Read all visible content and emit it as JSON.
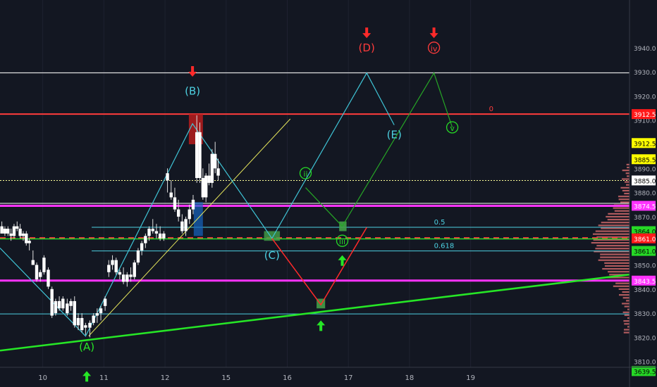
{
  "chart_data": {
    "type": "candlestick",
    "y_axis": {
      "range": [
        3800,
        3950
      ],
      "tick_labels": [
        "3940.0",
        "3930.0",
        "3920.0",
        "3910.0",
        "3890.0",
        "3880.0",
        "3870.0",
        "3850.0",
        "3840.0",
        "3830.0",
        "3820.0",
        "3810.0"
      ],
      "price_tags": [
        {
          "label": "3912.5",
          "value": 3912.5,
          "bg": "#ff1a1a",
          "fg": "#ffffff"
        },
        {
          "label": "3912.5",
          "value": 3900.5,
          "bg": "#ffff00",
          "fg": "#000000"
        },
        {
          "label": "3885.5",
          "value": 3893.8,
          "bg": "#ffff00",
          "fg": "#000000"
        },
        {
          "label": "3885.0",
          "value": 3885,
          "bg": "#ffffff",
          "fg": "#000000"
        },
        {
          "label": "3874.5",
          "value": 3874.5,
          "bg": "#ff33ff",
          "fg": "#ffffff"
        },
        {
          "label": "3864.0",
          "value": 3864,
          "bg": "#26d926",
          "fg": "#000000"
        },
        {
          "label": "3861.0",
          "value": 3861,
          "bg": "#ff1a1a",
          "fg": "#ffffff"
        },
        {
          "label": "3861.0",
          "value": 3855.8,
          "bg": "#26d926",
          "fg": "#000000"
        },
        {
          "label": "3843.5",
          "value": 3843.5,
          "bg": "#ff33ff",
          "fg": "#ffffff"
        },
        {
          "label": "3639.5",
          "value": 3806,
          "bg": "#26d926",
          "fg": "#000000"
        }
      ]
    },
    "x_axis": {
      "range": [
        9.3,
        19.6
      ],
      "tick_labels": [
        {
          "label": "10",
          "value": 10
        },
        {
          "label": "11",
          "value": 11
        },
        {
          "label": "12",
          "value": 12
        },
        {
          "label": "15",
          "value": 13
        },
        {
          "label": "16",
          "value": 14
        },
        {
          "label": "17",
          "value": 15
        },
        {
          "label": "18",
          "value": 16
        },
        {
          "label": "19",
          "value": 17
        }
      ]
    },
    "candles": [
      [
        9.33,
        3866,
        3868,
        3864,
        3863
      ],
      [
        9.38,
        3863,
        3866,
        3862,
        3865
      ],
      [
        9.43,
        3865,
        3866,
        3862,
        3863
      ],
      [
        9.48,
        3863,
        3865,
        3860,
        3862
      ],
      [
        9.53,
        3862,
        3867,
        3861,
        3866
      ],
      [
        9.58,
        3866,
        3868,
        3864,
        3865
      ],
      [
        9.63,
        3865,
        3867,
        3861,
        3862
      ],
      [
        9.68,
        3862,
        3864,
        3860,
        3863
      ],
      [
        9.73,
        3863,
        3864,
        3858,
        3859
      ],
      [
        9.78,
        3859,
        3861,
        3856,
        3860
      ],
      [
        9.84,
        3852,
        3856,
        3850,
        3850
      ],
      [
        9.9,
        3850,
        3851,
        3843,
        3844
      ],
      [
        9.96,
        3845,
        3848,
        3843,
        3847
      ],
      [
        10.02,
        3847,
        3854,
        3846,
        3853
      ],
      [
        10.09,
        3848,
        3849,
        3840,
        3841
      ],
      [
        10.15,
        3840,
        3841,
        3828,
        3829
      ],
      [
        10.21,
        3830,
        3836,
        3829,
        3835
      ],
      [
        10.27,
        3835,
        3837,
        3831,
        3832
      ],
      [
        10.33,
        3832,
        3837,
        3831,
        3836
      ],
      [
        10.4,
        3834,
        3836,
        3829,
        3830
      ],
      [
        10.46,
        3833,
        3836,
        3831,
        3835
      ],
      [
        10.52,
        3835,
        3837,
        3824,
        3825
      ],
      [
        10.58,
        3825,
        3830,
        3823,
        3828
      ],
      [
        10.64,
        3828,
        3830,
        3822,
        3823
      ],
      [
        10.7,
        3824,
        3826,
        3821,
        3825
      ],
      [
        10.77,
        3824,
        3827,
        3820,
        3826
      ],
      [
        10.83,
        3826,
        3830,
        3825,
        3829
      ],
      [
        10.89,
        3829,
        3832,
        3826,
        3830
      ],
      [
        10.95,
        3830,
        3833,
        3827,
        3832
      ],
      [
        11.02,
        3833,
        3837,
        3831,
        3836
      ],
      [
        11.08,
        3847,
        3852,
        3845,
        3850
      ],
      [
        11.14,
        3850,
        3854,
        3848,
        3852
      ],
      [
        11.2,
        3852,
        3853,
        3846,
        3847
      ],
      [
        11.26,
        3847,
        3848,
        3844,
        3846
      ],
      [
        11.32,
        3846,
        3849,
        3842,
        3843
      ],
      [
        11.38,
        3843,
        3847,
        3841,
        3846
      ],
      [
        11.44,
        3846,
        3849,
        3843,
        3845
      ],
      [
        11.5,
        3845,
        3852,
        3844,
        3851
      ],
      [
        11.56,
        3851,
        3857,
        3850,
        3856
      ],
      [
        11.62,
        3856,
        3860,
        3854,
        3859
      ],
      [
        11.68,
        3859,
        3863,
        3857,
        3862
      ],
      [
        11.74,
        3862,
        3866,
        3860,
        3865
      ],
      [
        11.8,
        3865,
        3869,
        3863,
        3864
      ],
      [
        11.86,
        3864,
        3867,
        3861,
        3863
      ],
      [
        11.92,
        3863,
        3866,
        3860,
        3861
      ],
      [
        11.98,
        3861,
        3864,
        3860,
        3863
      ],
      [
        12.04,
        3885,
        3890,
        3880,
        3888
      ],
      [
        12.1,
        3880,
        3885,
        3877,
        3878
      ],
      [
        12.16,
        3878,
        3882,
        3872,
        3873
      ],
      [
        12.22,
        3873,
        3877,
        3868,
        3870
      ],
      [
        12.28,
        3868,
        3871,
        3863,
        3864
      ],
      [
        12.34,
        3864,
        3870,
        3862,
        3869
      ],
      [
        12.4,
        3869,
        3875,
        3867,
        3873
      ],
      [
        12.46,
        3873,
        3879,
        3871,
        3877
      ],
      [
        12.52,
        3886,
        3912,
        3884,
        3905
      ],
      [
        12.57,
        3905,
        3909,
        3884,
        3886
      ],
      [
        12.62,
        3886,
        3890,
        3877,
        3878
      ],
      [
        12.67,
        3878,
        3888,
        3876,
        3887
      ],
      [
        12.72,
        3887,
        3892,
        3883,
        3884
      ],
      [
        12.77,
        3884,
        3898,
        3882,
        3896
      ],
      [
        12.82,
        3896,
        3901,
        3888,
        3890
      ],
      [
        12.87,
        3890,
        3894,
        3885,
        3887
      ]
    ],
    "horizontal_levels": [
      {
        "value": 3929.6,
        "color": "#e0e0e0",
        "width": 1.2
      },
      {
        "value": 3912.5,
        "color": "#ff3b3b",
        "width": 2,
        "label": "0",
        "label_x": 17.3
      },
      {
        "value": 3885,
        "color": "#ffff99",
        "width": 1,
        "dash": "2,2"
      },
      {
        "value": 3875.5,
        "color": "#ffffff",
        "width": 1
      },
      {
        "value": 3874.5,
        "color": "#ff33ff",
        "width": 3
      },
      {
        "value": 3865.6,
        "color": "#4dd0e1",
        "width": 1,
        "x_start": 10.8,
        "label": "0.5",
        "label_x": 16.4
      },
      {
        "value": 3861.2,
        "color": "#ff3b3b",
        "width": 2,
        "dash": "8,6"
      },
      {
        "value": 3860.8,
        "color": "#26d926",
        "width": 1.5
      },
      {
        "value": 3855.8,
        "color": "#4dd0e1",
        "width": 1,
        "x_start": 10.8,
        "label": "0.618",
        "label_x": 16.4
      },
      {
        "value": 3843.5,
        "color": "#ff33ff",
        "width": 3
      },
      {
        "value": 3829.7,
        "color": "#4dd0e1",
        "width": 1
      }
    ],
    "trendlines": [
      {
        "points": [
          [
            9.3,
            3814.5
          ],
          [
            19.6,
            3846
          ]
        ],
        "color": "#26e626",
        "width": 2.5
      },
      {
        "points": [
          [
            10.75,
            3820.5
          ],
          [
            14.05,
            3910.5
          ]
        ],
        "color": "#e6e65c",
        "width": 1
      },
      {
        "points": [
          [
            9.3,
            3857
          ],
          [
            10.7,
            3820.5
          ],
          [
            12.45,
            3908.5
          ],
          [
            13.75,
            3861
          ],
          [
            15.3,
            3929.5
          ],
          [
            15.75,
            3908
          ]
        ],
        "color": "#3fc4d6",
        "width": 1.2
      },
      {
        "points": [
          [
            13.75,
            3861
          ],
          [
            14.55,
            3833.5
          ],
          [
            15.3,
            3865.5
          ]
        ],
        "color": "#ff2a2a",
        "width": 1.5
      },
      {
        "points": [
          [
            14.3,
            3882
          ],
          [
            14.9,
            3866
          ],
          [
            16.4,
            3929.5
          ],
          [
            16.7,
            3907
          ]
        ],
        "color": "#26a626",
        "width": 1.2
      }
    ],
    "wave_labels": [
      {
        "label": "(A)",
        "x": 10.72,
        "y": 3816,
        "color": "#26e626"
      },
      {
        "label": "(B)",
        "x": 12.45,
        "y": 3922,
        "color": "#4dd0e1"
      },
      {
        "label": "(C)",
        "x": 13.75,
        "y": 3854,
        "color": "#4dd0e1"
      },
      {
        "label": "(E)",
        "x": 15.75,
        "y": 3904,
        "color": "#4dd0e1"
      },
      {
        "label": "(D)",
        "x": 15.3,
        "y": 3940,
        "color": "#ff3b3b"
      },
      {
        "label": "ii",
        "x": 14.3,
        "y": 3888,
        "color": "#26d926",
        "circle": true
      },
      {
        "label": "v",
        "x": 16.7,
        "y": 3907,
        "color": "#26d926",
        "circle": true
      },
      {
        "label": "iii",
        "x": 14.9,
        "y": 3860,
        "color": "#26d926",
        "circle": true
      },
      {
        "label": "iv",
        "x": 16.4,
        "y": 3940,
        "color": "#ff3b3b",
        "circle": true
      }
    ],
    "volume_profile": true
  }
}
